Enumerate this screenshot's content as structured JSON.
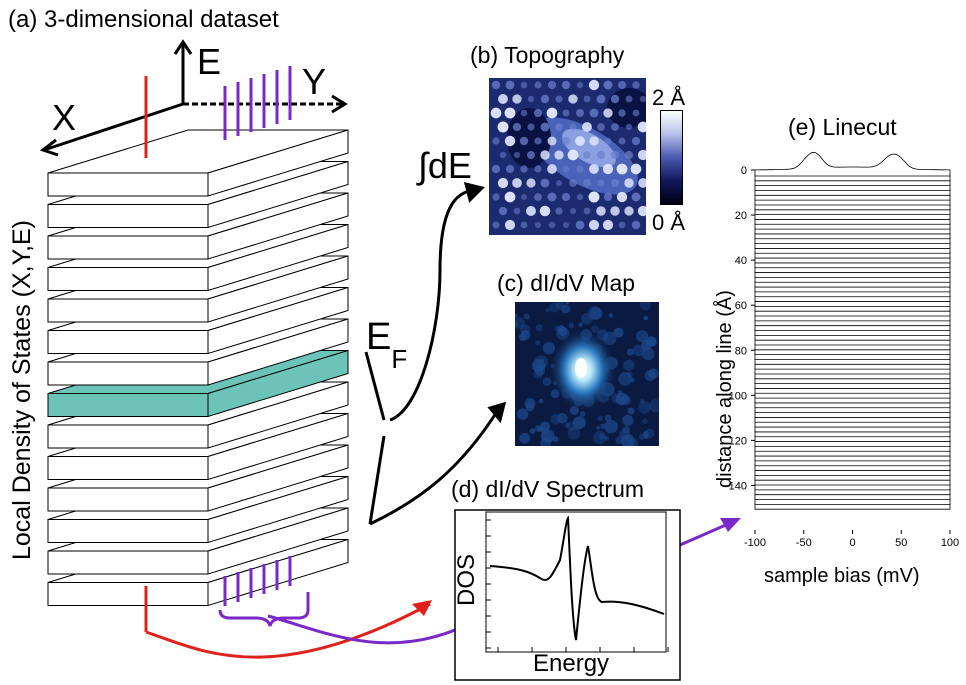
{
  "panels": {
    "a": "(a) 3-dimensional dataset",
    "b": "(b) Topography",
    "c": "(c) dI/dV Map",
    "d": "(d) dI/dV Spectrum",
    "e": "(e) Linecut"
  },
  "axes3d": {
    "x": "X",
    "y": "Y",
    "e": "E"
  },
  "ef_label": "E",
  "ef_sub": "F",
  "ldos_label": "Local Density of States (X,Y,E)",
  "integral_label": "∫dE",
  "colorbar": {
    "max": "2 Å",
    "min": "0 Å"
  },
  "spectrum": {
    "xlabel": "Energy",
    "ylabel": "DOS"
  },
  "colors": {
    "slab_highlight": "#6cc4b8",
    "red_line": "#e0201a",
    "purple_line": "#7a28c8"
  },
  "chart_data": {
    "type": "line",
    "title": "(e) Linecut",
    "xlabel": "sample bias (mV)",
    "ylabel": "distance along line (Å)",
    "xlim": [
      -100,
      100
    ],
    "ylim": [
      0,
      150
    ],
    "xticks": [
      "-100",
      "-50",
      "0",
      "50",
      "100"
    ],
    "yticks": [
      "0",
      "20",
      "40",
      "60",
      "80",
      "100",
      "120",
      "140"
    ]
  }
}
